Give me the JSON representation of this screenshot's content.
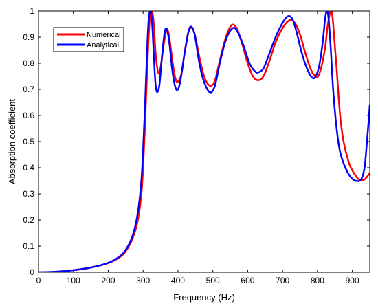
{
  "chart_data": {
    "type": "line",
    "title": "",
    "xlabel": "Frequency (Hz)",
    "ylabel": "Absorption coefficient",
    "xlim": [
      0,
      950
    ],
    "ylim": [
      0,
      1
    ],
    "xticks": [
      0,
      100,
      200,
      300,
      400,
      500,
      600,
      700,
      800,
      900
    ],
    "yticks": [
      0,
      0.1,
      0.2,
      0.3,
      0.4,
      0.5,
      0.6,
      0.7,
      0.8,
      0.9,
      1
    ],
    "xtick_labels": [
      "0",
      "100",
      "200",
      "300",
      "400",
      "500",
      "600",
      "700",
      "800",
      "900"
    ],
    "ytick_labels": [
      "0",
      "0.1",
      "0.2",
      "0.3",
      "0.4",
      "0.5",
      "0.6",
      "0.7",
      "0.8",
      "0.9",
      "1"
    ],
    "grid": false,
    "legend_position": "top-left",
    "series": [
      {
        "name": "Numerical",
        "color": "#ff0000",
        "points": [
          [
            0,
            0
          ],
          [
            50,
            0.002
          ],
          [
            100,
            0.008
          ],
          [
            150,
            0.018
          ],
          [
            200,
            0.035
          ],
          [
            230,
            0.055
          ],
          [
            250,
            0.08
          ],
          [
            270,
            0.13
          ],
          [
            285,
            0.2
          ],
          [
            295,
            0.3
          ],
          [
            300,
            0.4
          ],
          [
            305,
            0.55
          ],
          [
            310,
            0.72
          ],
          [
            315,
            0.88
          ],
          [
            320,
            0.98
          ],
          [
            325,
            1.0
          ],
          [
            330,
            0.96
          ],
          [
            337,
            0.82
          ],
          [
            345,
            0.76
          ],
          [
            352,
            0.8
          ],
          [
            360,
            0.88
          ],
          [
            368,
            0.93
          ],
          [
            375,
            0.9
          ],
          [
            385,
            0.8
          ],
          [
            393,
            0.74
          ],
          [
            400,
            0.73
          ],
          [
            410,
            0.76
          ],
          [
            420,
            0.85
          ],
          [
            430,
            0.92
          ],
          [
            440,
            0.935
          ],
          [
            450,
            0.9
          ],
          [
            462,
            0.82
          ],
          [
            475,
            0.75
          ],
          [
            490,
            0.715
          ],
          [
            505,
            0.73
          ],
          [
            520,
            0.81
          ],
          [
            535,
            0.89
          ],
          [
            548,
            0.935
          ],
          [
            558,
            0.948
          ],
          [
            570,
            0.93
          ],
          [
            585,
            0.87
          ],
          [
            600,
            0.8
          ],
          [
            615,
            0.75
          ],
          [
            630,
            0.735
          ],
          [
            645,
            0.75
          ],
          [
            660,
            0.8
          ],
          [
            680,
            0.88
          ],
          [
            700,
            0.935
          ],
          [
            720,
            0.965
          ],
          [
            735,
            0.955
          ],
          [
            750,
            0.91
          ],
          [
            765,
            0.84
          ],
          [
            780,
            0.78
          ],
          [
            793,
            0.75
          ],
          [
            802,
            0.75
          ],
          [
            812,
            0.79
          ],
          [
            822,
            0.86
          ],
          [
            830,
            0.95
          ],
          [
            838,
            1.0
          ],
          [
            843,
            0.98
          ],
          [
            848,
            0.9
          ],
          [
            855,
            0.78
          ],
          [
            865,
            0.6
          ],
          [
            875,
            0.5
          ],
          [
            890,
            0.42
          ],
          [
            900,
            0.39
          ],
          [
            915,
            0.36
          ],
          [
            925,
            0.352
          ],
          [
            935,
            0.355
          ],
          [
            945,
            0.37
          ],
          [
            950,
            0.38
          ]
        ]
      },
      {
        "name": "Analytical",
        "color": "#0000ff",
        "points": [
          [
            0,
            0
          ],
          [
            50,
            0.002
          ],
          [
            100,
            0.008
          ],
          [
            150,
            0.018
          ],
          [
            200,
            0.036
          ],
          [
            230,
            0.058
          ],
          [
            250,
            0.085
          ],
          [
            270,
            0.14
          ],
          [
            285,
            0.23
          ],
          [
            295,
            0.35
          ],
          [
            300,
            0.47
          ],
          [
            305,
            0.62
          ],
          [
            310,
            0.8
          ],
          [
            315,
            0.95
          ],
          [
            320,
            1.0
          ],
          [
            325,
            0.97
          ],
          [
            330,
            0.85
          ],
          [
            335,
            0.73
          ],
          [
            340,
            0.69
          ],
          [
            347,
            0.72
          ],
          [
            355,
            0.84
          ],
          [
            362,
            0.92
          ],
          [
            368,
            0.93
          ],
          [
            375,
            0.88
          ],
          [
            385,
            0.76
          ],
          [
            395,
            0.7
          ],
          [
            405,
            0.72
          ],
          [
            418,
            0.83
          ],
          [
            430,
            0.92
          ],
          [
            438,
            0.94
          ],
          [
            448,
            0.91
          ],
          [
            460,
            0.81
          ],
          [
            472,
            0.74
          ],
          [
            490,
            0.69
          ],
          [
            505,
            0.71
          ],
          [
            520,
            0.8
          ],
          [
            535,
            0.88
          ],
          [
            550,
            0.925
          ],
          [
            563,
            0.935
          ],
          [
            575,
            0.91
          ],
          [
            590,
            0.86
          ],
          [
            605,
            0.8
          ],
          [
            620,
            0.77
          ],
          [
            630,
            0.765
          ],
          [
            645,
            0.78
          ],
          [
            660,
            0.83
          ],
          [
            680,
            0.9
          ],
          [
            700,
            0.955
          ],
          [
            715,
            0.98
          ],
          [
            728,
            0.97
          ],
          [
            740,
            0.92
          ],
          [
            755,
            0.84
          ],
          [
            770,
            0.78
          ],
          [
            785,
            0.745
          ],
          [
            795,
            0.75
          ],
          [
            805,
            0.79
          ],
          [
            815,
            0.88
          ],
          [
            822,
            0.97
          ],
          [
            827,
            1.0
          ],
          [
            832,
            0.97
          ],
          [
            838,
            0.86
          ],
          [
            845,
            0.7
          ],
          [
            855,
            0.55
          ],
          [
            865,
            0.46
          ],
          [
            880,
            0.4
          ],
          [
            895,
            0.365
          ],
          [
            910,
            0.35
          ],
          [
            925,
            0.355
          ],
          [
            935,
            0.4
          ],
          [
            942,
            0.5
          ],
          [
            948,
            0.6
          ],
          [
            950,
            0.64
          ]
        ]
      }
    ]
  }
}
